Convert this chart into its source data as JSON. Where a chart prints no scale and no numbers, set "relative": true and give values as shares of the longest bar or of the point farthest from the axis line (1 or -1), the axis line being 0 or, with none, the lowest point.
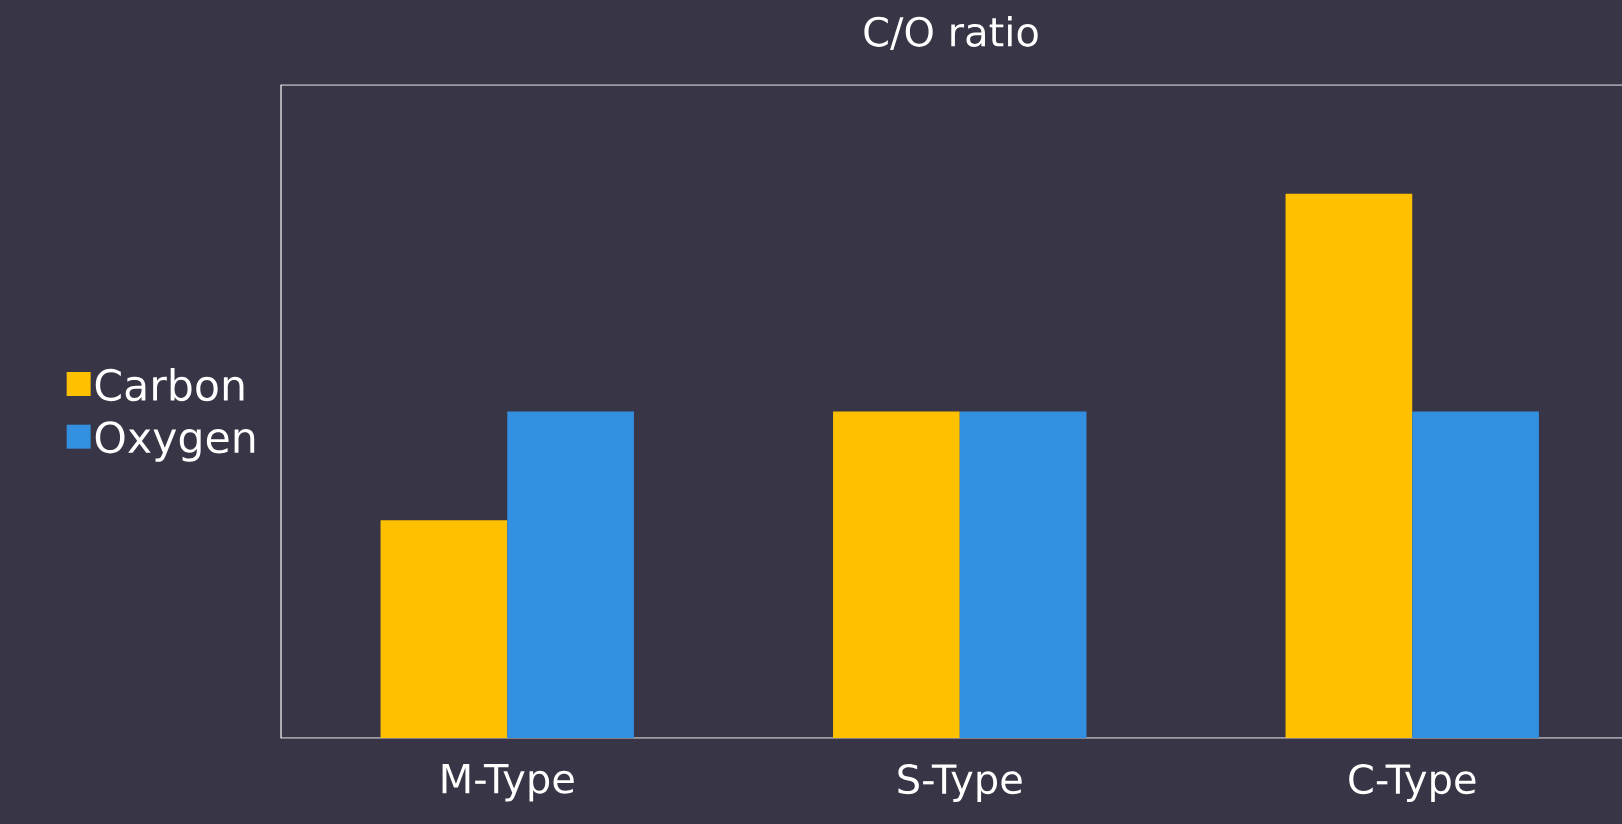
{
  "chart_data": {
    "type": "bar",
    "title": "C/O ratio",
    "categories": [
      "M-Type",
      "S-Type",
      "C-Type"
    ],
    "series": [
      {
        "name": "Carbon",
        "color": "#ffc000",
        "values": [
          0.4,
          0.6,
          1.0
        ]
      },
      {
        "name": "Oxygen",
        "color": "#338fe0",
        "values": [
          0.6,
          0.6,
          0.6
        ]
      }
    ],
    "relative": true,
    "legend": "left"
  }
}
